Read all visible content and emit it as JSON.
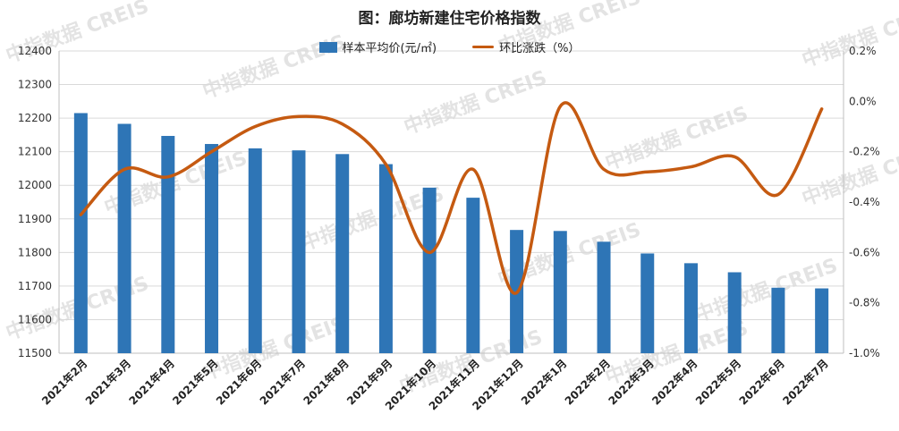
{
  "chart_data": {
    "type": "bar+line",
    "title": "图：廊坊新建住宅价格指数",
    "categories": [
      "2021年2月",
      "2021年3月",
      "2021年4月",
      "2021年5月",
      "2021年6月",
      "2021年7月",
      "2021年8月",
      "2021年9月",
      "2021年10月",
      "2021年11月",
      "2021年12月",
      "2022年1月",
      "2022年2月",
      "2022年3月",
      "2022年4月",
      "2022年5月",
      "2022年6月",
      "2022年7月"
    ],
    "series": [
      {
        "name": "样本平均价(元/㎡)",
        "type": "bar",
        "axis": "left",
        "color": "#2e75b6",
        "values": [
          12215,
          12183,
          12147,
          12123,
          12110,
          12104,
          12093,
          12063,
          11993,
          11963,
          11867,
          11864,
          11832,
          11797,
          11768,
          11741,
          11695,
          11693
        ]
      },
      {
        "name": "环比涨跌（%）",
        "type": "line",
        "axis": "right",
        "color": "#c55a11",
        "values": [
          -0.45,
          -0.27,
          -0.3,
          -0.2,
          -0.1,
          -0.06,
          -0.09,
          -0.25,
          -0.6,
          -0.27,
          -0.76,
          -0.02,
          -0.27,
          -0.28,
          -0.26,
          -0.22,
          -0.37,
          -0.03
        ]
      }
    ],
    "y_left": {
      "min": 11500,
      "max": 12400,
      "ticks": [
        "11500",
        "11600",
        "11700",
        "11800",
        "11900",
        "12000",
        "12100",
        "12200",
        "12300",
        "12400"
      ]
    },
    "y_right": {
      "min": -1.0,
      "max": 0.2,
      "ticks": [
        "-1.0%",
        "-0.8%",
        "-0.6%",
        "-0.4%",
        "-0.2%",
        "0.0%",
        "0.2%"
      ]
    },
    "grid": true,
    "legend_position": "top-center"
  },
  "watermark": "中指数据 CREIS"
}
